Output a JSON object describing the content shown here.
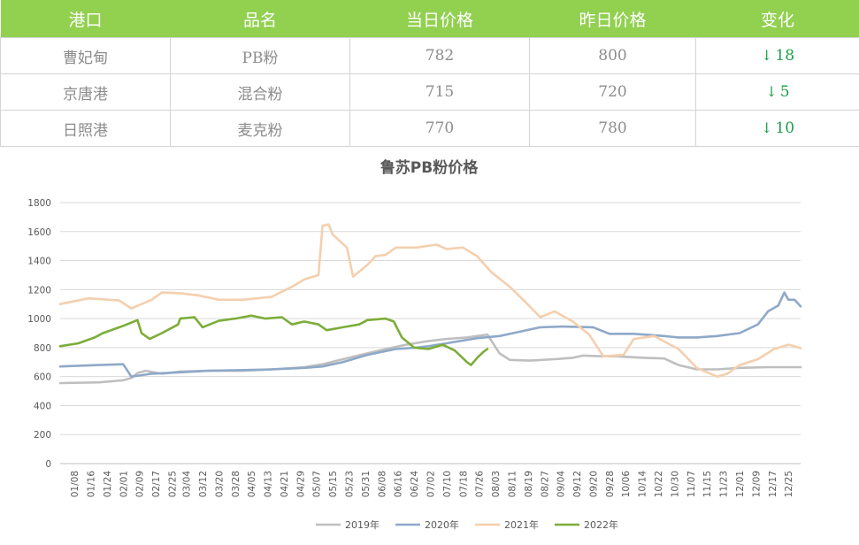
{
  "table": {
    "headers": [
      "港口",
      "品名",
      "当日价格",
      "昨日价格",
      "变化"
    ],
    "rows": [
      {
        "port": "曹妃甸",
        "product": "PB粉",
        "today": "782",
        "yesterday": "800",
        "change": "18",
        "direction": "down"
      },
      {
        "port": "京唐港",
        "product": "混合粉",
        "today": "715",
        "yesterday": "720",
        "change": "5",
        "direction": "down"
      },
      {
        "port": "日照港",
        "product": "麦克粉",
        "today": "770",
        "yesterday": "780",
        "change": "10",
        "direction": "down"
      }
    ],
    "header_color": "#92d050",
    "change_color": "#1a9e4a"
  },
  "chart_data": {
    "type": "line",
    "title": "鲁苏PB粉价格",
    "xlabel": "",
    "ylabel": "",
    "ylim": [
      0,
      1800
    ],
    "yticks": [
      0,
      200,
      400,
      600,
      800,
      1000,
      1200,
      1400,
      1600,
      1800
    ],
    "grid": true,
    "legend_position": "bottom",
    "x_domain": [
      "01/01",
      "12/31"
    ],
    "x_ticks": [
      "01/08",
      "01/16",
      "01/24",
      "02/01",
      "02/09",
      "02/17",
      "02/25",
      "03/04",
      "03/12",
      "03/20",
      "03/28",
      "04/05",
      "04/13",
      "04/21",
      "04/29",
      "05/07",
      "05/15",
      "05/23",
      "05/31",
      "06/08",
      "06/16",
      "06/24",
      "07/02",
      "07/10",
      "07/18",
      "07/26",
      "08/03",
      "08/11",
      "08/19",
      "08/27",
      "09/04",
      "09/12",
      "09/20",
      "09/28",
      "10/06",
      "10/14",
      "10/22",
      "10/30",
      "11/07",
      "11/15",
      "11/23",
      "12/01",
      "12/09",
      "12/17",
      "12/25"
    ],
    "series": [
      {
        "name": "2019年",
        "color": "#bfbfbf",
        "points": [
          [
            "01/01",
            555
          ],
          [
            "01/20",
            560
          ],
          [
            "02/01",
            575
          ],
          [
            "02/05",
            590
          ],
          [
            "02/08",
            625
          ],
          [
            "02/12",
            640
          ],
          [
            "02/20",
            620
          ],
          [
            "03/01",
            635
          ],
          [
            "03/15",
            640
          ],
          [
            "04/01",
            640
          ],
          [
            "04/15",
            650
          ],
          [
            "05/01",
            665
          ],
          [
            "05/10",
            685
          ],
          [
            "05/20",
            720
          ],
          [
            "06/01",
            760
          ],
          [
            "06/10",
            790
          ],
          [
            "06/20",
            820
          ],
          [
            "07/01",
            845
          ],
          [
            "07/10",
            860
          ],
          [
            "07/20",
            870
          ],
          [
            "07/30",
            890
          ],
          [
            "08/05",
            760
          ],
          [
            "08/10",
            715
          ],
          [
            "08/20",
            710
          ],
          [
            "09/01",
            720
          ],
          [
            "09/10",
            730
          ],
          [
            "09/15",
            745
          ],
          [
            "09/25",
            740
          ],
          [
            "10/01",
            740
          ],
          [
            "10/15",
            730
          ],
          [
            "10/25",
            725
          ],
          [
            "11/01",
            680
          ],
          [
            "11/10",
            650
          ],
          [
            "11/20",
            650
          ],
          [
            "12/01",
            660
          ],
          [
            "12/15",
            665
          ],
          [
            "12/31",
            665
          ]
        ]
      },
      {
        "name": "2020年",
        "color": "#8ea9c8",
        "points": [
          [
            "01/01",
            670
          ],
          [
            "01/20",
            680
          ],
          [
            "02/01",
            685
          ],
          [
            "02/05",
            600
          ],
          [
            "02/15",
            620
          ],
          [
            "03/01",
            630
          ],
          [
            "03/15",
            640
          ],
          [
            "04/01",
            645
          ],
          [
            "04/15",
            650
          ],
          [
            "05/01",
            660
          ],
          [
            "05/10",
            670
          ],
          [
            "05/20",
            700
          ],
          [
            "06/01",
            750
          ],
          [
            "06/15",
            790
          ],
          [
            "06/25",
            800
          ],
          [
            "07/01",
            810
          ],
          [
            "07/10",
            830
          ],
          [
            "07/25",
            865
          ],
          [
            "08/05",
            880
          ],
          [
            "08/15",
            910
          ],
          [
            "08/25",
            940
          ],
          [
            "09/05",
            945
          ],
          [
            "09/20",
            940
          ],
          [
            "09/28",
            895
          ],
          [
            "10/10",
            895
          ],
          [
            "10/25",
            880
          ],
          [
            "11/01",
            870
          ],
          [
            "11/10",
            870
          ],
          [
            "11/20",
            880
          ],
          [
            "12/01",
            900
          ],
          [
            "12/10",
            960
          ],
          [
            "12/15",
            1050
          ],
          [
            "12/20",
            1090
          ],
          [
            "12/23",
            1180
          ],
          [
            "12/25",
            1130
          ],
          [
            "12/28",
            1130
          ],
          [
            "12/31",
            1085
          ]
        ]
      },
      {
        "name": "2021年",
        "color": "#f4cfae",
        "points": [
          [
            "01/01",
            1100
          ],
          [
            "01/15",
            1140
          ],
          [
            "01/30",
            1125
          ],
          [
            "02/05",
            1070
          ],
          [
            "02/15",
            1130
          ],
          [
            "02/20",
            1180
          ],
          [
            "03/01",
            1175
          ],
          [
            "03/10",
            1160
          ],
          [
            "03/20",
            1130
          ],
          [
            "04/01",
            1130
          ],
          [
            "04/15",
            1150
          ],
          [
            "04/25",
            1220
          ],
          [
            "05/01",
            1270
          ],
          [
            "05/08",
            1300
          ],
          [
            "05/10",
            1640
          ],
          [
            "05/13",
            1650
          ],
          [
            "05/15",
            1580
          ],
          [
            "05/22",
            1490
          ],
          [
            "05/25",
            1290
          ],
          [
            "06/01",
            1370
          ],
          [
            "06/05",
            1430
          ],
          [
            "06/10",
            1440
          ],
          [
            "06/15",
            1490
          ],
          [
            "06/25",
            1490
          ],
          [
            "07/05",
            1510
          ],
          [
            "07/10",
            1480
          ],
          [
            "07/18",
            1490
          ],
          [
            "07/25",
            1430
          ],
          [
            "08/01",
            1320
          ],
          [
            "08/10",
            1220
          ],
          [
            "08/18",
            1110
          ],
          [
            "08/25",
            1010
          ],
          [
            "09/01",
            1050
          ],
          [
            "09/10",
            980
          ],
          [
            "09/18",
            890
          ],
          [
            "09/25",
            740
          ],
          [
            "10/05",
            750
          ],
          [
            "10/10",
            860
          ],
          [
            "10/20",
            880
          ],
          [
            "11/01",
            790
          ],
          [
            "11/10",
            660
          ],
          [
            "11/20",
            600
          ],
          [
            "11/25",
            620
          ],
          [
            "12/01",
            680
          ],
          [
            "12/10",
            720
          ],
          [
            "12/18",
            790
          ],
          [
            "12/25",
            820
          ],
          [
            "12/28",
            810
          ],
          [
            "12/31",
            795
          ]
        ]
      },
      {
        "name": "2022年",
        "color": "#7cad3a",
        "points": [
          [
            "01/01",
            810
          ],
          [
            "01/10",
            830
          ],
          [
            "01/18",
            870
          ],
          [
            "01/22",
            900
          ],
          [
            "02/01",
            950
          ],
          [
            "02/08",
            990
          ],
          [
            "02/10",
            900
          ],
          [
            "02/14",
            860
          ],
          [
            "02/20",
            900
          ],
          [
            "02/28",
            960
          ],
          [
            "03/01",
            1000
          ],
          [
            "03/08",
            1010
          ],
          [
            "03/12",
            940
          ],
          [
            "03/20",
            985
          ],
          [
            "03/28",
            1000
          ],
          [
            "04/05",
            1020
          ],
          [
            "04/12",
            1000
          ],
          [
            "04/20",
            1010
          ],
          [
            "04/25",
            960
          ],
          [
            "05/01",
            980
          ],
          [
            "05/08",
            960
          ],
          [
            "05/12",
            920
          ],
          [
            "05/20",
            940
          ],
          [
            "05/28",
            960
          ],
          [
            "06/01",
            990
          ],
          [
            "06/10",
            1000
          ],
          [
            "06/14",
            980
          ],
          [
            "06/18",
            870
          ],
          [
            "06/24",
            800
          ],
          [
            "07/01",
            790
          ],
          [
            "07/08",
            820
          ],
          [
            "07/14",
            780
          ],
          [
            "07/20",
            700
          ],
          [
            "07/22",
            680
          ],
          [
            "07/25",
            730
          ],
          [
            "07/28",
            770
          ],
          [
            "07/30",
            790
          ]
        ]
      }
    ]
  }
}
